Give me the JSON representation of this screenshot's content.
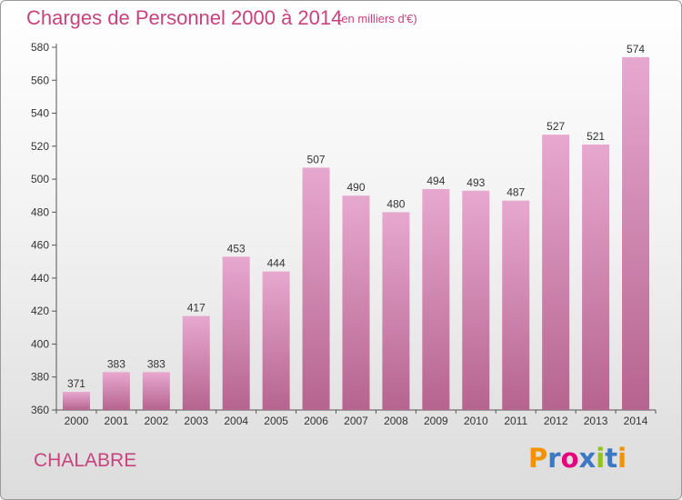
{
  "title": "Charges de Personnel 2000 à 2014",
  "subtitle": "(en milliers d'€)",
  "town": "CHALABRE",
  "logo": {
    "text": "Proxiti",
    "colors": [
      "#f39200",
      "#3c78c3",
      "#e6007e",
      "#3c78c3",
      "#95c11f",
      "#3c78c3",
      "#f39200"
    ]
  },
  "colors": {
    "title": "#c8437e",
    "bar_top": "#e7a8cf",
    "bar_bottom": "#b5648f"
  },
  "chart_data": {
    "type": "bar",
    "title": "Charges de Personnel 2000 à 2014",
    "xlabel": "",
    "ylabel": "",
    "categories": [
      "2000",
      "2001",
      "2002",
      "2003",
      "2004",
      "2005",
      "2006",
      "2007",
      "2008",
      "2009",
      "2010",
      "2011",
      "2012",
      "2013",
      "2014"
    ],
    "values": [
      371,
      383,
      383,
      417,
      453,
      444,
      507,
      490,
      480,
      494,
      493,
      487,
      527,
      521,
      574
    ],
    "ylim": [
      360,
      580
    ],
    "yticks": [
      360,
      380,
      400,
      420,
      440,
      460,
      480,
      500,
      520,
      540,
      560,
      580
    ],
    "grid": false,
    "legend": "none"
  }
}
